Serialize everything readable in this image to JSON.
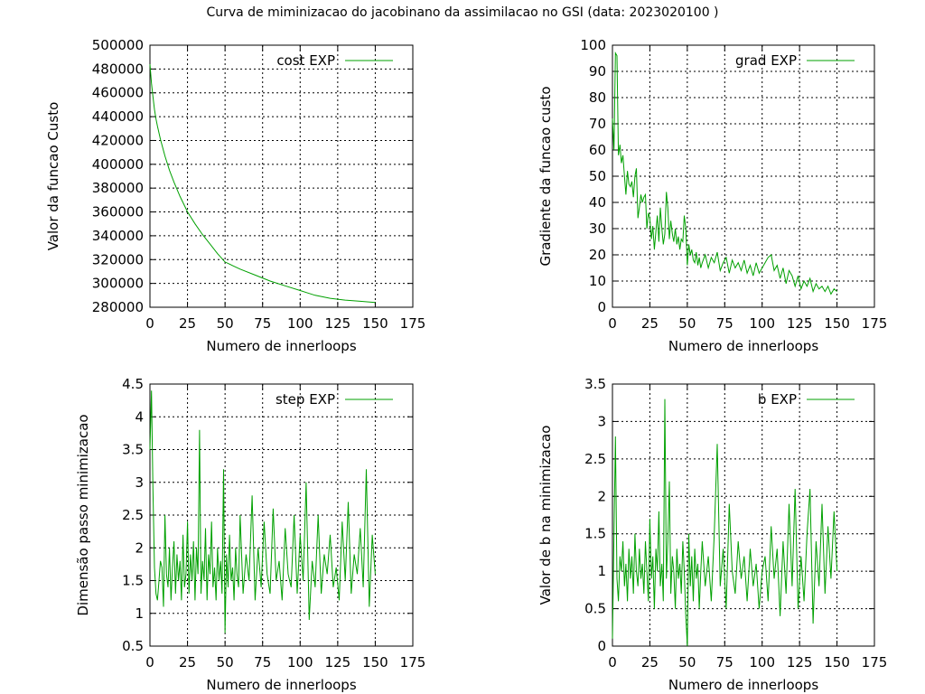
{
  "title": "Curva de miminizacao do jacobinano da assimilacao no GSI (data: 2023020100 )",
  "colors": {
    "series": "#00a000",
    "axis": "#000000",
    "grid": "#000000"
  },
  "chart_data": [
    {
      "id": "cost",
      "type": "line",
      "legend": "cost EXP",
      "legend_position": "top-right",
      "xlabel": "Numero de innerloops",
      "ylabel": "Valor da funcao Custo",
      "xlim": [
        0,
        175
      ],
      "ylim": [
        280000,
        500000
      ],
      "grid": true,
      "xticks": [
        "0",
        "25",
        "50",
        "75",
        "100",
        "125",
        "150",
        "175"
      ],
      "yticks": [
        "280000",
        "300000",
        "320000",
        "340000",
        "360000",
        "380000",
        "400000",
        "420000",
        "440000",
        "460000",
        "480000",
        "500000"
      ],
      "x": [
        0,
        1,
        2,
        3,
        4,
        5,
        7,
        10,
        13,
        16,
        20,
        25,
        30,
        35,
        40,
        45,
        50,
        55,
        60,
        70,
        80,
        90,
        100,
        105,
        110,
        120,
        130,
        140,
        150
      ],
      "y": [
        484000,
        468000,
        457000,
        446000,
        438000,
        432000,
        421000,
        407000,
        395000,
        385000,
        373000,
        360000,
        350000,
        341000,
        333000,
        325000,
        318000,
        315000,
        312000,
        307000,
        302000,
        298000,
        294000,
        292000,
        290000,
        287500,
        286000,
        285000,
        284000
      ]
    },
    {
      "id": "grad",
      "type": "line",
      "legend": "grad EXP",
      "legend_position": "top-right",
      "xlabel": "Numero de innerloops",
      "ylabel": "Gradiente da funcao custo",
      "xlim": [
        0,
        175
      ],
      "ylim": [
        0,
        100
      ],
      "grid": true,
      "xticks": [
        "0",
        "25",
        "50",
        "75",
        "100",
        "125",
        "150",
        "175"
      ],
      "yticks": [
        "0",
        "10",
        "20",
        "30",
        "40",
        "50",
        "60",
        "70",
        "80",
        "90",
        "100"
      ],
      "x": [
        0,
        1,
        2,
        3,
        4,
        5,
        6,
        7,
        8,
        9,
        10,
        11,
        12,
        13,
        14,
        15,
        16,
        17,
        18,
        19,
        20,
        21,
        22,
        23,
        24,
        25,
        26,
        27,
        28,
        29,
        30,
        31,
        32,
        33,
        34,
        35,
        36,
        37,
        38,
        39,
        40,
        41,
        42,
        43,
        44,
        45,
        46,
        47,
        48,
        49,
        50,
        51,
        52,
        53,
        54,
        55,
        56,
        57,
        58,
        59,
        60,
        62,
        64,
        66,
        68,
        70,
        72,
        74,
        76,
        78,
        80,
        82,
        84,
        86,
        88,
        90,
        92,
        94,
        96,
        98,
        100,
        102,
        104,
        106,
        108,
        110,
        112,
        114,
        116,
        118,
        120,
        122,
        124,
        126,
        128,
        130,
        132,
        134,
        136,
        138,
        140,
        142,
        144,
        146,
        148,
        150
      ],
      "y": [
        72,
        60,
        97,
        96,
        58,
        62,
        55,
        58,
        50,
        43,
        52,
        47,
        46,
        48,
        42,
        50,
        53,
        34,
        38,
        43,
        40,
        42,
        43,
        30,
        36,
        34,
        26,
        31,
        22,
        29,
        35,
        25,
        38,
        30,
        24,
        28,
        44,
        38,
        26,
        33,
        28,
        25,
        30,
        24,
        27,
        22,
        26,
        25,
        35,
        30,
        16,
        24,
        20,
        22,
        18,
        17,
        21,
        16,
        19,
        15,
        17,
        20,
        15,
        19,
        17,
        21,
        14,
        17,
        19,
        13,
        18,
        15,
        17,
        14,
        18,
        13,
        16,
        12,
        17,
        13,
        15,
        17,
        19,
        20,
        14,
        16,
        11,
        15,
        9,
        14,
        12,
        8,
        12,
        7,
        10,
        8,
        11,
        6,
        9,
        7,
        8,
        6,
        8,
        5,
        7,
        6
      ]
    },
    {
      "id": "step",
      "type": "line",
      "legend": "step EXP",
      "legend_position": "top-right",
      "xlabel": "Numero de innerloops",
      "ylabel": "Dimensão passo minimizacao",
      "xlim": [
        0,
        175
      ],
      "ylim": [
        0.5,
        4.5
      ],
      "grid": true,
      "xticks": [
        "0",
        "25",
        "50",
        "75",
        "100",
        "125",
        "150",
        "175"
      ],
      "yticks": [
        "0.5",
        "1",
        "1.5",
        "2",
        "2.5",
        "3",
        "3.5",
        "4",
        "4.5"
      ],
      "x": [
        0,
        1,
        2,
        3,
        4,
        5,
        6,
        7,
        8,
        9,
        10,
        11,
        12,
        13,
        14,
        15,
        16,
        17,
        18,
        19,
        20,
        21,
        22,
        23,
        24,
        25,
        26,
        27,
        28,
        29,
        30,
        31,
        32,
        33,
        34,
        35,
        36,
        37,
        38,
        39,
        40,
        41,
        42,
        43,
        44,
        45,
        46,
        47,
        48,
        49,
        50,
        51,
        52,
        53,
        54,
        55,
        56,
        57,
        58,
        59,
        60,
        62,
        64,
        66,
        68,
        70,
        72,
        74,
        76,
        78,
        80,
        82,
        84,
        86,
        88,
        90,
        92,
        94,
        96,
        98,
        100,
        102,
        104,
        106,
        108,
        110,
        112,
        114,
        116,
        118,
        120,
        122,
        124,
        126,
        128,
        130,
        132,
        134,
        136,
        138,
        140,
        142,
        144,
        146,
        148,
        150
      ],
      "y": [
        3.5,
        4.4,
        2.9,
        1.7,
        1.3,
        1.2,
        1.5,
        1.8,
        1.7,
        1.1,
        2.5,
        1.6,
        1.4,
        2.0,
        1.2,
        1.7,
        2.1,
        1.3,
        1.9,
        1.5,
        1.8,
        1.2,
        2.2,
        1.4,
        1.6,
        2.4,
        1.3,
        1.9,
        1.5,
        2.1,
        1.2,
        2.0,
        1.6,
        3.8,
        1.3,
        1.8,
        1.5,
        2.3,
        1.2,
        1.9,
        1.6,
        2.4,
        1.4,
        1.7,
        1.2,
        2.0,
        1.5,
        1.8,
        1.3,
        3.2,
        0.7,
        1.9,
        1.4,
        2.2,
        1.5,
        1.7,
        1.2,
        2.0,
        1.6,
        1.4,
        2.5,
        1.3,
        1.9,
        1.5,
        2.8,
        1.2,
        2.0,
        1.4,
        2.4,
        1.6,
        1.3,
        2.6,
        1.5,
        1.8,
        1.2,
        2.3,
        1.6,
        1.4,
        2.5,
        1.3,
        2.2,
        1.5,
        3.0,
        0.9,
        1.8,
        1.4,
        2.5,
        1.3,
        1.9,
        1.6,
        2.2,
        1.4,
        1.7,
        1.2,
        2.4,
        1.5,
        2.7,
        1.3,
        1.9,
        1.6,
        2.3,
        1.4,
        3.2,
        1.1,
        2.2,
        1.6
      ]
    },
    {
      "id": "b",
      "type": "line",
      "legend": "b EXP",
      "legend_position": "top-right",
      "xlabel": "Numero de innerloops",
      "ylabel": "Valor de b na minimizacao",
      "xlim": [
        0,
        175
      ],
      "ylim": [
        0,
        3.5
      ],
      "grid": true,
      "xticks": [
        "0",
        "25",
        "50",
        "75",
        "100",
        "125",
        "150",
        "175"
      ],
      "yticks": [
        "0",
        "0.5",
        "1",
        "1.5",
        "2",
        "2.5",
        "3",
        "3.5"
      ],
      "x": [
        0,
        1,
        2,
        3,
        4,
        5,
        6,
        7,
        8,
        9,
        10,
        11,
        12,
        13,
        14,
        15,
        16,
        17,
        18,
        19,
        20,
        21,
        22,
        23,
        24,
        25,
        26,
        27,
        28,
        29,
        30,
        31,
        32,
        33,
        34,
        35,
        36,
        37,
        38,
        39,
        40,
        41,
        42,
        43,
        44,
        45,
        46,
        47,
        48,
        49,
        50,
        51,
        52,
        53,
        54,
        55,
        56,
        57,
        58,
        59,
        60,
        62,
        64,
        66,
        68,
        70,
        72,
        74,
        76,
        78,
        80,
        82,
        84,
        86,
        88,
        90,
        92,
        94,
        96,
        98,
        100,
        102,
        104,
        106,
        108,
        110,
        112,
        114,
        116,
        118,
        120,
        122,
        124,
        126,
        128,
        130,
        132,
        134,
        136,
        138,
        140,
        142,
        144,
        146,
        148,
        150
      ],
      "y": [
        0.1,
        1.5,
        2.8,
        0.9,
        0.6,
        1.2,
        1.0,
        1.4,
        0.8,
        1.1,
        0.6,
        1.3,
        0.9,
        1.2,
        0.7,
        1.5,
        1.0,
        0.8,
        1.3,
        0.9,
        1.1,
        0.7,
        1.4,
        1.0,
        0.6,
        1.7,
        0.9,
        1.2,
        0.5,
        1.3,
        1.0,
        1.8,
        0.8,
        1.1,
        0.6,
        3.3,
        0.9,
        1.4,
        2.2,
        0.7,
        1.2,
        1.0,
        0.5,
        1.3,
        0.9,
        1.1,
        0.7,
        1.4,
        1.0,
        0.4,
        0.0,
        1.5,
        0.8,
        1.2,
        0.6,
        1.3,
        0.9,
        1.1,
        0.5,
        1.0,
        1.4,
        0.8,
        1.2,
        0.6,
        1.5,
        2.7,
        0.8,
        1.3,
        0.5,
        1.9,
        1.0,
        0.7,
        1.4,
        0.9,
        1.2,
        0.6,
        1.3,
        0.8,
        1.1,
        0.5,
        1.0,
        1.2,
        0.6,
        1.6,
        0.9,
        1.3,
        0.4,
        1.4,
        0.7,
        1.9,
        0.8,
        2.1,
        0.5,
        1.2,
        0.6,
        1.5,
        2.1,
        0.3,
        1.4,
        0.8,
        1.9,
        0.7,
        1.6,
        0.9,
        1.8,
        1.0
      ]
    }
  ]
}
